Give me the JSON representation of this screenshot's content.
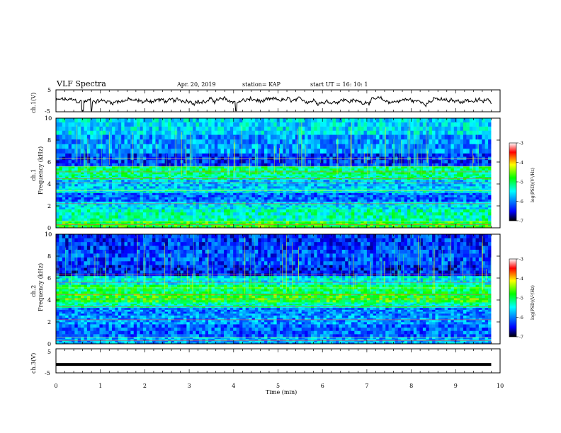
{
  "header": {
    "title": "VLF Spectra",
    "date": "Apr. 20, 2019",
    "station": "station= KAP",
    "start": "start  UT =    16: 10: 1"
  },
  "chart_data": [
    {
      "type": "line",
      "panel": "ch1-waveform",
      "ylabel": "ch.1(V)",
      "ylim": [
        -5,
        5
      ],
      "yticks": [
        "5",
        "-5"
      ],
      "xlim": [
        0,
        10
      ],
      "color": "#000000",
      "trace": "noisy waveform roughly centered near 0 V (between about -5 and 5 V), with sharp dips near 0.6 min and 0.8 min"
    },
    {
      "type": "heatmap",
      "panel": "ch1-spectrogram",
      "ylabel": "ch.1\nFrequency  (kHz)",
      "ylim": [
        0,
        10
      ],
      "yticks": [
        "0",
        "2",
        "4",
        "6",
        "8",
        "10"
      ],
      "xlim": [
        0,
        10
      ],
      "colorbar": {
        "label": "log(PSD)(V²/Hz)",
        "ticks": [
          "-3",
          "-4",
          "-5",
          "-6",
          "-7"
        ],
        "range": [
          -7,
          -3
        ],
        "colormap": [
          "#000000",
          "#0000ff",
          "#00ffff",
          "#00ff00",
          "#ffff00",
          "#ff0000",
          "#ffffff"
        ]
      },
      "bands": [
        {
          "from": 0.0,
          "to": 0.6,
          "level": -4.8
        },
        {
          "from": 0.6,
          "to": 1.7,
          "level": -5.3
        },
        {
          "from": 1.7,
          "to": 2.4,
          "level": -5.6
        },
        {
          "from": 2.4,
          "to": 3.2,
          "level": -6.1
        },
        {
          "from": 3.2,
          "to": 3.6,
          "level": -5.5
        },
        {
          "from": 3.6,
          "to": 4.4,
          "level": -5.7
        },
        {
          "from": 4.4,
          "to": 4.9,
          "level": -5.2
        },
        {
          "from": 4.9,
          "to": 5.6,
          "level": -5.1
        },
        {
          "from": 5.6,
          "to": 6.8,
          "level": -6.3
        },
        {
          "from": 6.8,
          "to": 8.5,
          "level": -5.9
        },
        {
          "from": 8.5,
          "to": 10.0,
          "level": -5.6
        }
      ]
    },
    {
      "type": "heatmap",
      "panel": "ch2-spectrogram",
      "ylabel": "ch.2\nFrequency  (kHz)",
      "ylim": [
        0,
        10
      ],
      "yticks": [
        "0",
        "2",
        "4",
        "6",
        "8",
        "10"
      ],
      "xlim": [
        0,
        10
      ],
      "colorbar": {
        "label": "log(PSD)(V²/Hz)",
        "ticks": [
          "-3",
          "-4",
          "-5",
          "-6",
          "-7"
        ],
        "range": [
          -7,
          -3
        ]
      },
      "bands": [
        {
          "from": 0.0,
          "to": 0.6,
          "level": -5.8
        },
        {
          "from": 0.6,
          "to": 1.8,
          "level": -6.1
        },
        {
          "from": 1.8,
          "to": 2.6,
          "level": -5.9
        },
        {
          "from": 2.6,
          "to": 3.3,
          "level": -6.0
        },
        {
          "from": 3.3,
          "to": 3.8,
          "level": -5.3
        },
        {
          "from": 3.8,
          "to": 4.6,
          "level": -4.8
        },
        {
          "from": 4.6,
          "to": 5.4,
          "level": -5.0
        },
        {
          "from": 5.4,
          "to": 6.2,
          "level": -5.5
        },
        {
          "from": 6.2,
          "to": 7.2,
          "level": -6.4
        },
        {
          "from": 7.2,
          "to": 8.6,
          "level": -6.2
        },
        {
          "from": 8.6,
          "to": 10.0,
          "level": -6.3
        }
      ]
    },
    {
      "type": "line",
      "panel": "ch3-waveform",
      "ylabel": "ch.3(V)",
      "ylim": [
        -5,
        5
      ],
      "yticks": [
        "5",
        "-5"
      ],
      "xlabel": "Time  (min)",
      "xlim": [
        0,
        10
      ],
      "xticks": [
        "0",
        "1",
        "2",
        "3",
        "4",
        "5",
        "6",
        "7",
        "8",
        "9",
        "10"
      ],
      "values": [
        {
          "x": 0,
          "y": -1.5
        },
        {
          "x": 9.8,
          "y": -1.5
        }
      ],
      "color": "#000000"
    }
  ]
}
